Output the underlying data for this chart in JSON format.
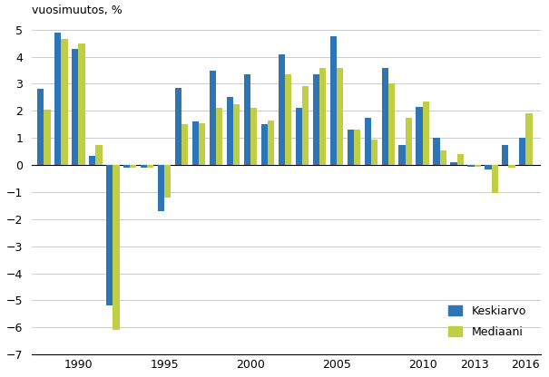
{
  "years": [
    1988,
    1989,
    1990,
    1991,
    1992,
    1993,
    1994,
    1995,
    1996,
    1997,
    1998,
    1999,
    2000,
    2001,
    2002,
    2003,
    2004,
    2005,
    2006,
    2007,
    2008,
    2009,
    2010,
    2011,
    2012,
    2013,
    2014,
    2015,
    2016
  ],
  "keskiarvo": [
    2.8,
    4.9,
    4.3,
    0.35,
    -5.2,
    -0.1,
    -0.1,
    -1.7,
    2.85,
    1.6,
    3.5,
    2.5,
    3.35,
    1.5,
    4.1,
    2.1,
    3.35,
    4.75,
    1.3,
    1.75,
    3.6,
    0.75,
    2.15,
    1.0,
    0.1,
    -0.05,
    -0.15,
    0.75,
    1.0
  ],
  "mediaani": [
    2.05,
    4.65,
    4.5,
    0.75,
    -6.1,
    -0.1,
    -0.1,
    -1.2,
    1.5,
    1.55,
    2.1,
    2.25,
    2.1,
    1.65,
    3.35,
    2.9,
    3.6,
    3.6,
    1.3,
    0.95,
    3.0,
    1.75,
    2.35,
    0.55,
    0.4,
    -0.05,
    -1.05,
    -0.1,
    1.9
  ],
  "bar_color_keskiarvo": "#2E75B6",
  "bar_color_mediaani": "#BFCE45",
  "top_label": "vuosimuutos, %",
  "ylim": [
    -7,
    5
  ],
  "yticks": [
    -7,
    -6,
    -5,
    -4,
    -3,
    -2,
    -1,
    0,
    1,
    2,
    3,
    4,
    5
  ],
  "xtick_labels": [
    "1990",
    "1995",
    "2000",
    "2005",
    "2010",
    "2013",
    "2016"
  ],
  "xtick_years": [
    1990,
    1995,
    2000,
    2005,
    2010,
    2013,
    2016
  ],
  "legend_labels": [
    "Keskiarvo",
    "Mediaani"
  ],
  "background_color": "#FFFFFF",
  "grid_color": "#CCCCCC"
}
